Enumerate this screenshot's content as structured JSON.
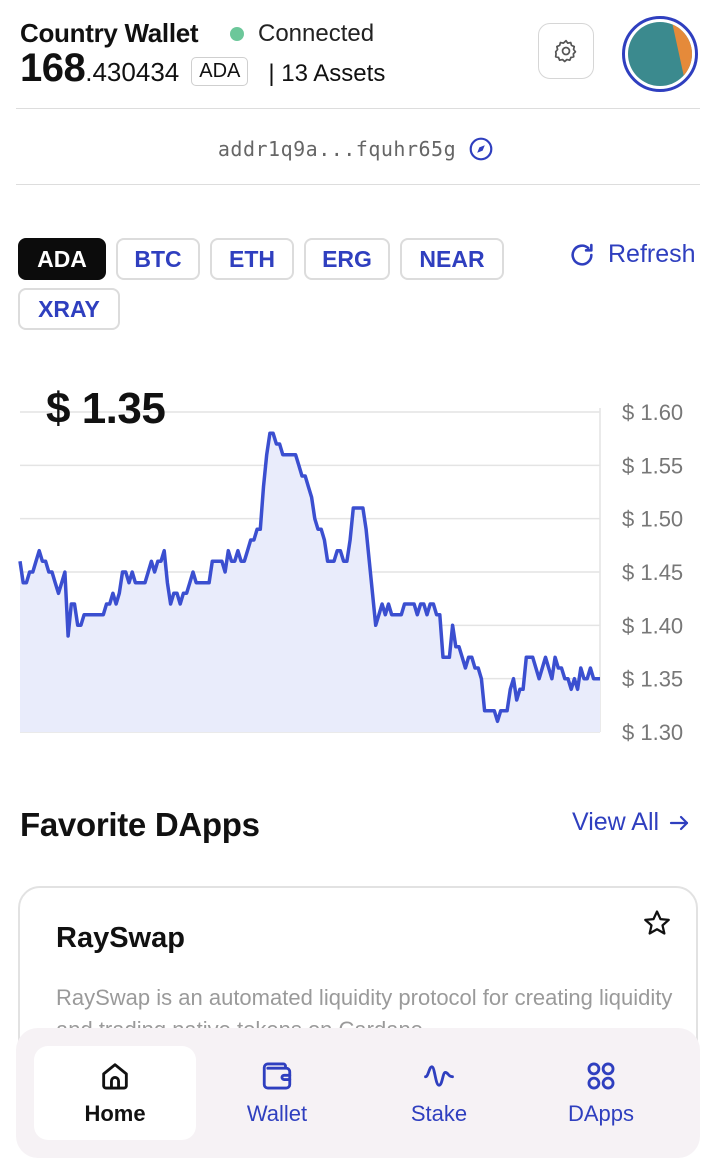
{
  "header": {
    "wallet_name": "Country Wallet",
    "status": "Connected",
    "status_color": "#6cc79a",
    "balance_int": "168",
    "balance_dec": ".430434",
    "unit": "ADA",
    "assets": "|  13 Assets",
    "settings_icon": "gear-icon"
  },
  "address": {
    "text": "addr1q9a...fquhr65g",
    "icon": "compass-icon"
  },
  "tokens": {
    "items": [
      "ADA",
      "BTC",
      "ETH",
      "ERG",
      "NEAR",
      "XRAY"
    ],
    "selected": "ADA",
    "refresh_label": "Refresh"
  },
  "price": "$ 1.35",
  "chart_data": {
    "type": "area",
    "accent_color": "#3b4fd0",
    "fill_color": "#e9ecfb",
    "ylim": [
      1.3,
      1.6
    ],
    "y_ticks": [
      "$ 1.60",
      "$ 1.55",
      "$ 1.50",
      "$ 1.45",
      "$ 1.40",
      "$ 1.35",
      "$ 1.30"
    ],
    "grid": true,
    "series": [
      {
        "values": [
          1.46,
          1.44,
          1.44,
          1.45,
          1.45,
          1.46,
          1.47,
          1.46,
          1.46,
          1.45,
          1.45,
          1.44,
          1.43,
          1.44,
          1.45,
          1.39,
          1.42,
          1.42,
          1.4,
          1.4,
          1.41,
          1.41,
          1.41,
          1.41,
          1.41,
          1.41,
          1.41,
          1.42,
          1.42,
          1.43,
          1.42,
          1.43,
          1.45,
          1.45,
          1.44,
          1.45,
          1.44,
          1.44,
          1.44,
          1.44,
          1.45,
          1.46,
          1.45,
          1.46,
          1.46,
          1.47,
          1.44,
          1.42,
          1.43,
          1.43,
          1.42,
          1.43,
          1.43,
          1.44,
          1.45,
          1.44,
          1.44,
          1.44,
          1.44,
          1.44,
          1.46,
          1.46,
          1.46,
          1.46,
          1.45,
          1.47,
          1.46,
          1.46,
          1.47,
          1.46,
          1.46,
          1.47,
          1.48,
          1.48,
          1.49,
          1.49,
          1.53,
          1.56,
          1.58,
          1.58,
          1.57,
          1.57,
          1.56,
          1.56,
          1.56,
          1.56,
          1.56,
          1.55,
          1.54,
          1.54,
          1.53,
          1.52,
          1.5,
          1.49,
          1.49,
          1.48,
          1.46,
          1.46,
          1.46,
          1.47,
          1.47,
          1.46,
          1.46,
          1.48,
          1.51,
          1.51,
          1.51,
          1.51,
          1.49,
          1.46,
          1.43,
          1.4,
          1.41,
          1.42,
          1.41,
          1.42,
          1.41,
          1.41,
          1.41,
          1.41,
          1.42,
          1.42,
          1.42,
          1.42,
          1.41,
          1.42,
          1.42,
          1.41,
          1.42,
          1.42,
          1.41,
          1.41,
          1.37,
          1.37,
          1.37,
          1.4,
          1.38,
          1.38,
          1.37,
          1.36,
          1.37,
          1.37,
          1.36,
          1.36,
          1.35,
          1.32,
          1.32,
          1.32,
          1.32,
          1.31,
          1.32,
          1.32,
          1.32,
          1.34,
          1.35,
          1.33,
          1.34,
          1.34,
          1.37,
          1.37,
          1.37,
          1.36,
          1.35,
          1.36,
          1.37,
          1.36,
          1.35,
          1.37,
          1.36,
          1.36,
          1.35,
          1.35,
          1.34,
          1.35,
          1.34,
          1.36,
          1.35,
          1.35,
          1.36,
          1.35,
          1.35,
          1.35
        ]
      }
    ]
  },
  "favorites": {
    "title": "Favorite DApps",
    "view_all": "View All",
    "card": {
      "title": "RaySwap",
      "description": "RaySwap is an automated liquidity protocol for creating liquidity and trading native tokens on Cardano."
    }
  },
  "nav": {
    "items": [
      {
        "label": "Home",
        "icon": "home-icon"
      },
      {
        "label": "Wallet",
        "icon": "wallet-icon"
      },
      {
        "label": "Stake",
        "icon": "pulse-icon"
      },
      {
        "label": "DApps",
        "icon": "grid-icon"
      }
    ],
    "active": "Home"
  }
}
